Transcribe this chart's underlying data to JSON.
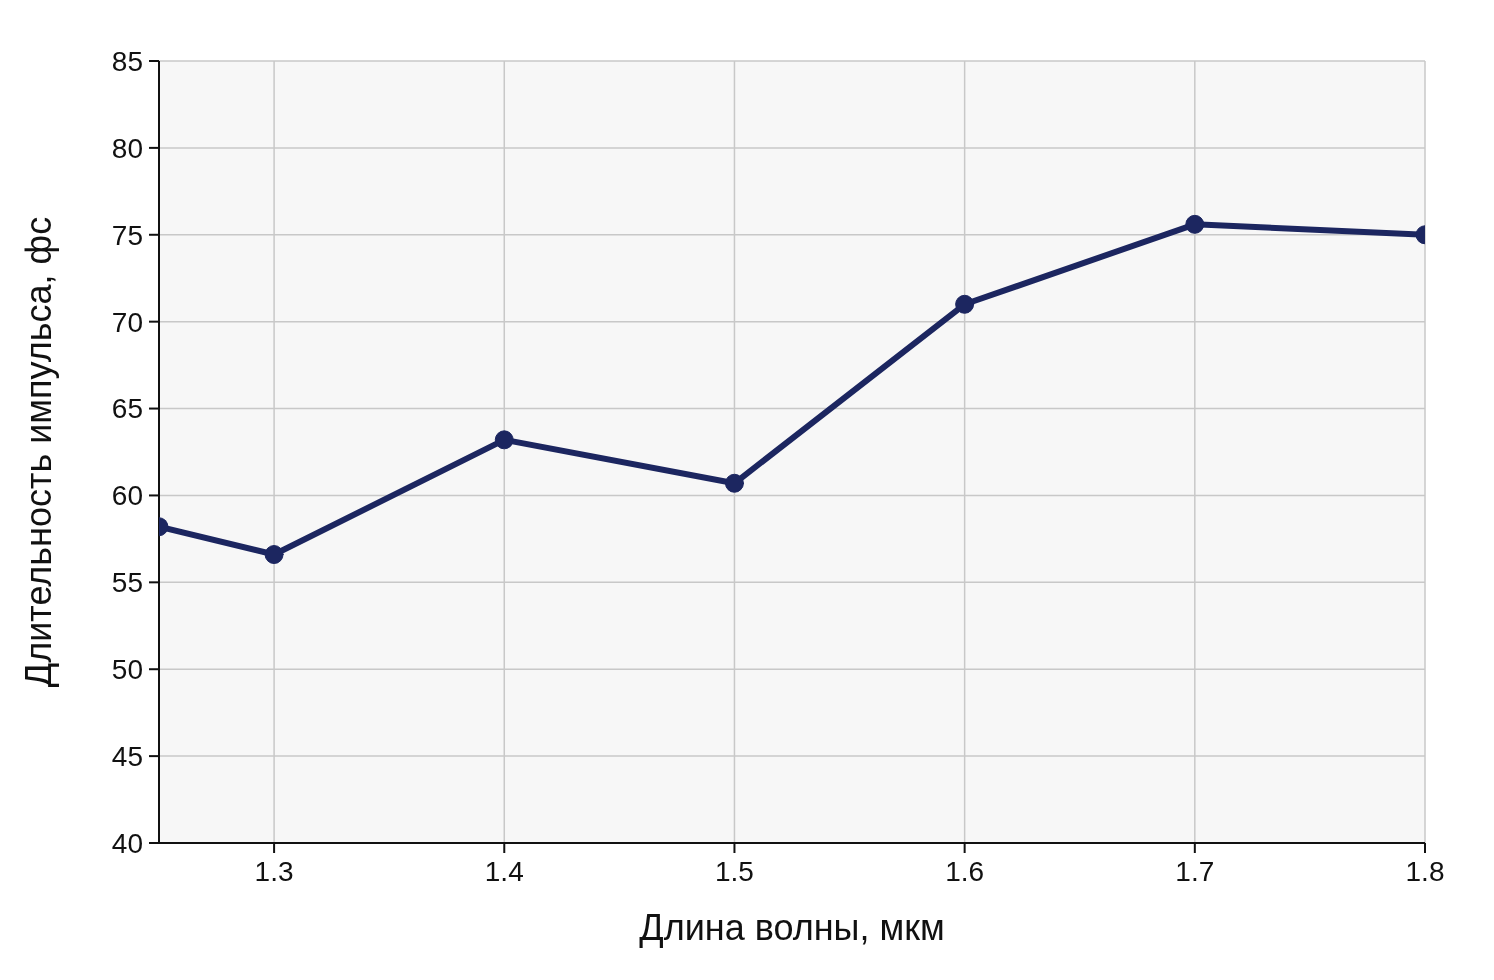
{
  "chart_data": {
    "type": "line",
    "xlabel": "Длина волны, мкм",
    "ylabel": "Длительность импульса, фс",
    "x": [
      1.25,
      1.3,
      1.4,
      1.5,
      1.6,
      1.7,
      1.8
    ],
    "series": [
      {
        "color": "#1c2660",
        "values": [
          58.2,
          56.6,
          63.2,
          60.7,
          71.0,
          75.6,
          75.0
        ]
      }
    ],
    "xlim": [
      1.25,
      1.8
    ],
    "xticks": [
      1.3,
      1.4,
      1.5,
      1.6,
      1.7,
      1.8
    ],
    "ylim": [
      40,
      85
    ],
    "yticks": [
      40,
      45,
      50,
      55,
      60,
      65,
      70,
      75,
      80,
      85
    ],
    "grid": true,
    "marker": "circle",
    "line_style": "solid"
  }
}
